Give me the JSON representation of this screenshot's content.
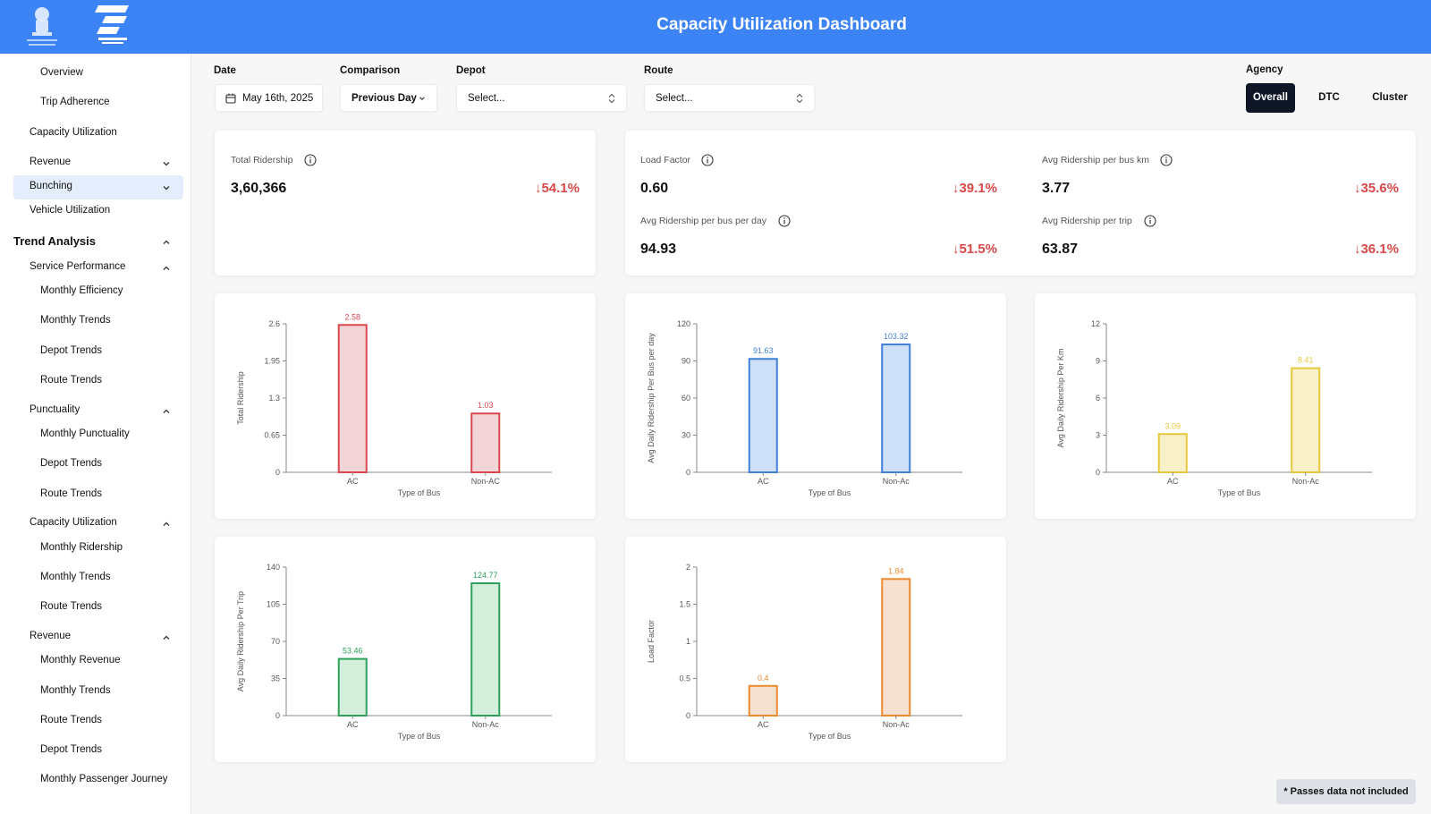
{
  "header": {
    "title": "Capacity Utilization Dashboard"
  },
  "sidebar": {
    "items": [
      {
        "label": "Overview"
      },
      {
        "label": "Trip Adherence"
      },
      {
        "label": "Capacity Utilization"
      },
      {
        "label": "Revenue"
      },
      {
        "label": "Bunching"
      },
      {
        "label": "Vehicle Utilization"
      }
    ],
    "trend_heading": "Trend Analysis",
    "groups": [
      {
        "label": "Service Performance",
        "children": [
          "Monthly Efficiency",
          "Monthly Trends",
          "Depot Trends",
          "Route Trends"
        ]
      },
      {
        "label": "Punctuality",
        "children": [
          "Monthly Punctuality",
          "Depot Trends",
          "Route Trends"
        ]
      },
      {
        "label": "Capacity Utilization",
        "children": [
          "Monthly Ridership",
          "Monthly Trends",
          "Route Trends"
        ]
      },
      {
        "label": "Revenue",
        "children": [
          "Monthly Revenue",
          "Monthly Trends",
          "Route Trends",
          "Depot Trends",
          "Monthly Passenger Journey"
        ]
      }
    ]
  },
  "filters": {
    "date_label": "Date",
    "date_value": "May 16th, 2025",
    "comparison_label": "Comparison",
    "comparison_value": "Previous Day",
    "depot_label": "Depot",
    "depot_placeholder": "Select...",
    "route_label": "Route",
    "route_placeholder": "Select...",
    "agency_label": "Agency",
    "agency_options": [
      "Overall",
      "DTC",
      "Cluster"
    ],
    "agency_selected": "Overall"
  },
  "metrics": {
    "total_ridership": {
      "label": "Total Ridership",
      "value": "3,60,366",
      "change": "↓54.1%"
    },
    "load_factor": {
      "label": "Load Factor",
      "value": "0.60",
      "change": "↓39.1%"
    },
    "ridership_bus_km": {
      "label": "Avg Ridership per bus km",
      "value": "3.77",
      "change": "↓35.6%"
    },
    "ridership_bus_day": {
      "label": "Avg Ridership per bus per day",
      "value": "94.93",
      "change": "↓51.5%"
    },
    "ridership_trip": {
      "label": "Avg Ridership per trip",
      "value": "63.87",
      "change": "↓36.1%"
    }
  },
  "chart_data": [
    {
      "type": "bar",
      "categories": [
        "AC",
        "Non-AC"
      ],
      "values": [
        2.58,
        1.03
      ],
      "value_labels": [
        "2.58",
        "1.03"
      ],
      "xlabel": "Type of Bus",
      "ylabel": "Total Ridership",
      "ylim": [
        0,
        2.6
      ],
      "yticks": [
        "0",
        "0.65",
        "1.3",
        "1.95",
        "2.6"
      ],
      "color": "#d9484f",
      "fill": "#f3d5d8"
    },
    {
      "type": "bar",
      "categories": [
        "AC",
        "Non-Ac"
      ],
      "values": [
        91.63,
        103.32
      ],
      "value_labels": [
        "91.63",
        "103.32"
      ],
      "xlabel": "Type of Bus",
      "ylabel": "Avg Daily Ridership Per Bus per day",
      "ylim": [
        0,
        120
      ],
      "yticks": [
        "0",
        "30",
        "60",
        "90",
        "120"
      ],
      "color": "#3f7fd6",
      "fill": "#cde0f7"
    },
    {
      "type": "bar",
      "categories": [
        "AC",
        "Non-Ac"
      ],
      "values": [
        3.09,
        8.41
      ],
      "value_labels": [
        "3.09",
        "8.41"
      ],
      "xlabel": "Type of Bus",
      "ylabel": "Avg Daily Ridership Per Km",
      "ylim": [
        0,
        12
      ],
      "yticks": [
        "0",
        "3",
        "6",
        "9",
        "12"
      ],
      "color": "#e6c93a",
      "fill": "#f8f0c9"
    },
    {
      "type": "bar",
      "categories": [
        "AC",
        "Non-Ac"
      ],
      "values": [
        53.46,
        124.77
      ],
      "value_labels": [
        "53.46",
        "124.77"
      ],
      "xlabel": "Type of Bus",
      "ylabel": "Avg Daily Ridership Per Trip",
      "ylim": [
        0,
        140
      ],
      "yticks": [
        "0",
        "35",
        "70",
        "105",
        "140"
      ],
      "color": "#2ea05a",
      "fill": "#d4efdc"
    },
    {
      "type": "bar",
      "categories": [
        "AC",
        "Non-Ac"
      ],
      "values": [
        0.4,
        1.84
      ],
      "value_labels": [
        "0.4",
        "1.84"
      ],
      "xlabel": "Type of Bus",
      "ylabel": "Load Factor",
      "ylim": [
        0,
        2
      ],
      "yticks": [
        "0",
        "0.5",
        "1",
        "1.5",
        "2"
      ],
      "color": "#ec8a2e",
      "fill": "#f6e1d0"
    }
  ],
  "footer_note": "* Passes data not included"
}
